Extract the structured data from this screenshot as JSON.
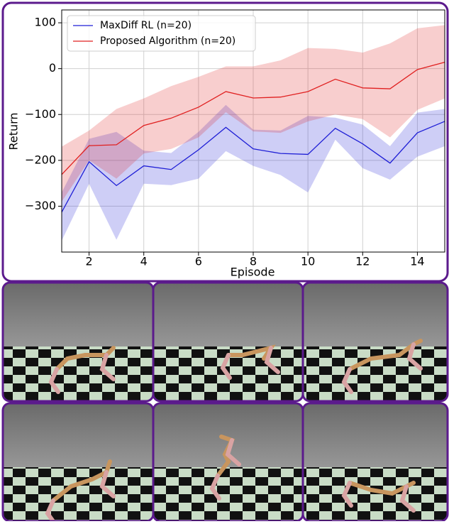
{
  "chart_data": {
    "type": "line",
    "xlabel": "Episode",
    "ylabel": "Return",
    "x": [
      1,
      2,
      3,
      4,
      5,
      6,
      7,
      8,
      9,
      10,
      11,
      12,
      13,
      14,
      15
    ],
    "series": [
      {
        "name": "MaxDiff RL (n=20)",
        "color": "#1f1fd6",
        "values": [
          -313,
          -203,
          -255,
          -212,
          -220,
          -177,
          -128,
          -175,
          -185,
          -187,
          -130,
          -164,
          -206,
          -140,
          -115
        ],
        "upper": [
          -270,
          -153,
          -138,
          -179,
          -184,
          -138,
          -79,
          -133,
          -135,
          -103,
          -107,
          -122,
          -169,
          -96,
          -88
        ],
        "lower": [
          -375,
          -251,
          -373,
          -251,
          -254,
          -240,
          -180,
          -212,
          -232,
          -270,
          -155,
          -217,
          -242,
          -192,
          -169
        ]
      },
      {
        "name": "Proposed Algorithm (n=20)",
        "color": "#e02020",
        "values": [
          -231,
          -168,
          -166,
          -124,
          -108,
          -84,
          -50,
          -64,
          -62,
          -50,
          -23,
          -42,
          -44,
          -2,
          14
        ],
        "upper": [
          -170,
          -135,
          -88,
          -65,
          -38,
          -18,
          5,
          5,
          18,
          45,
          43,
          35,
          55,
          88,
          95
        ],
        "lower": [
          -290,
          -200,
          -240,
          -185,
          -175,
          -150,
          -95,
          -137,
          -140,
          -115,
          -100,
          -110,
          -150,
          -90,
          -65
        ]
      }
    ],
    "xlim": [
      1,
      15
    ],
    "xticks": [
      2,
      4,
      6,
      8,
      10,
      12,
      14
    ],
    "ylim": [
      -400,
      128
    ],
    "yticks": [
      {
        "value": -300,
        "label": "−300"
      },
      {
        "value": -200,
        "label": "−200"
      },
      {
        "value": -100,
        "label": "−100"
      },
      0,
      100
    ],
    "grid": true,
    "legend": "upper left"
  }
}
